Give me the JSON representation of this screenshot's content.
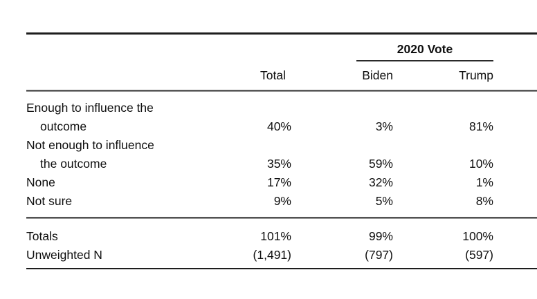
{
  "colors": {
    "background": "#ffffff",
    "text": "#0f0f0f",
    "rule_heavy": "#1d1d1d",
    "rule_light": "#979797"
  },
  "table": {
    "span_header": "2020 Vote",
    "columns": [
      "Total",
      "Biden",
      "Trump"
    ],
    "rows": [
      {
        "label": "Enough to influence the",
        "label_indent": "outcome",
        "total": "40%",
        "biden": "3%",
        "trump": "81%"
      },
      {
        "label": "Not enough to influence",
        "label_indent": "the outcome",
        "total": "35%",
        "biden": "59%",
        "trump": "10%"
      },
      {
        "label": "None",
        "total": "17%",
        "biden": "32%",
        "trump": "1%"
      },
      {
        "label": "Not sure",
        "total": "9%",
        "biden": "5%",
        "trump": "8%"
      }
    ],
    "summary_rows": [
      {
        "label": "Totals",
        "total": "101%",
        "biden": "99%",
        "trump": "100%"
      },
      {
        "label": "Unweighted N",
        "total": "(1,491)",
        "biden": "(797)",
        "trump": "(597)"
      }
    ]
  }
}
